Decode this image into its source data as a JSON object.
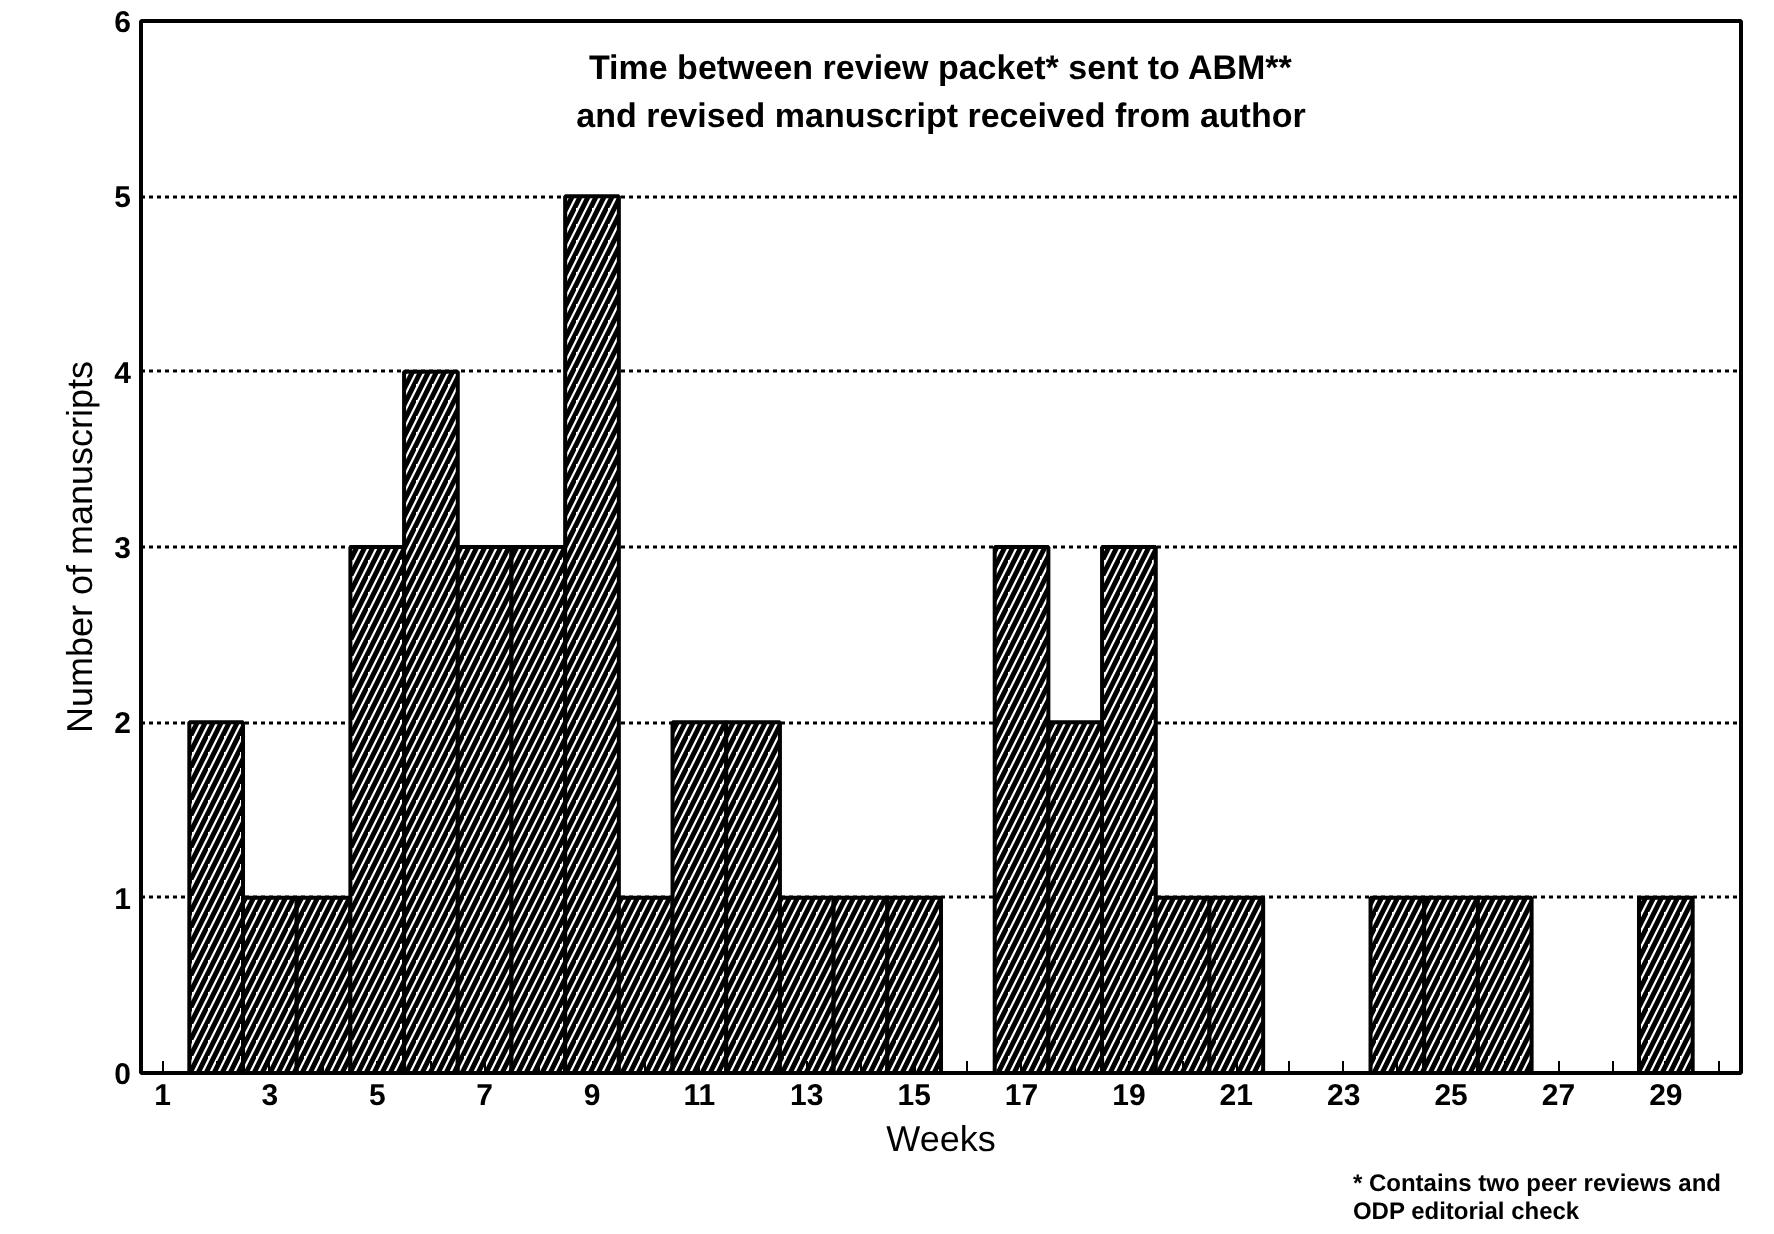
{
  "chart_data": {
    "type": "bar",
    "title": "Time between review packet* sent to ABM**\nand revised manuscript received from author",
    "xlabel": "Weeks",
    "ylabel": "Number of manuscripts",
    "x": [
      2,
      3,
      4,
      5,
      6,
      7,
      8,
      9,
      10,
      11,
      12,
      13,
      14,
      15,
      16,
      17,
      18,
      19,
      20,
      21,
      22,
      23,
      24,
      25,
      26,
      27,
      28,
      29
    ],
    "values": [
      2,
      1,
      1,
      3,
      4,
      3,
      3,
      5,
      1,
      2,
      2,
      1,
      1,
      1,
      0,
      3,
      2,
      3,
      1,
      1,
      0,
      0,
      1,
      1,
      1,
      0,
      0,
      1
    ],
    "color": "#000000",
    "xlim": [
      0.6,
      30.4
    ],
    "ylim": [
      0,
      6
    ],
    "xticks": [
      1,
      {
        "value": 2,
        "label": null
      },
      3,
      {
        "value": 4,
        "label": null
      },
      5,
      {
        "value": 6,
        "label": null
      },
      7,
      {
        "value": 8,
        "label": null
      },
      9,
      {
        "value": 10,
        "label": null
      },
      11,
      {
        "value": 12,
        "label": null
      },
      13,
      {
        "value": 14,
        "label": null
      },
      15,
      {
        "value": 16,
        "label": null
      },
      17,
      {
        "value": 18,
        "label": null
      },
      19,
      {
        "value": 20,
        "label": null
      },
      21,
      {
        "value": 22,
        "label": null
      },
      23,
      {
        "value": 24,
        "label": null
      },
      25,
      {
        "value": 26,
        "label": null
      },
      27,
      {
        "value": 28,
        "label": null
      },
      29,
      {
        "value": 30,
        "label": null
      }
    ],
    "yticks": [
      0,
      1,
      2,
      3,
      4,
      5,
      6
    ],
    "grid": "y",
    "annotations": [
      "* Contains two peer reviews and\nODP editorial check"
    ]
  }
}
